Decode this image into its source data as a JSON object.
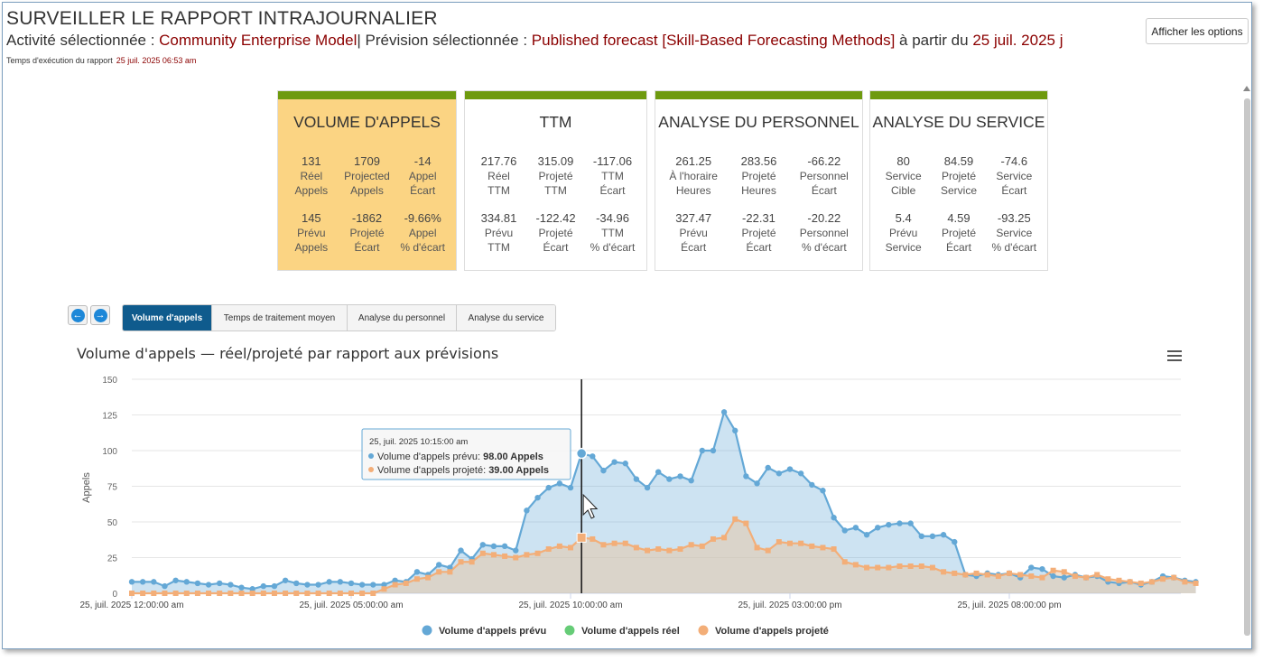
{
  "header": {
    "title": "SURVEILLER LE RAPPORT INTRAJOURNALIER",
    "activity_label": "Activité sélectionnée : ",
    "activity_value": "Community Enterprise Model",
    "forecast_label": "| Prévision sélectionnée : ",
    "forecast_value": "Published forecast [Skill-Based Forecasting Methods]",
    "from_label": " à partir du ",
    "from_value": "25 juil. 2025 j",
    "exec_label": "Temps d'exécution du rapport",
    "exec_value": "25 juil. 2025 06:53 am",
    "options_button": "Afficher les options"
  },
  "cards": [
    {
      "title": "VOLUME D'APPELS",
      "active": true,
      "metrics": [
        {
          "value": "131",
          "l1": "Réel",
          "l2": "Appels"
        },
        {
          "value": "1709",
          "l1": "Projected",
          "l2": "Appels"
        },
        {
          "value": "-14",
          "l1": "Appel",
          "l2": "Écart"
        },
        {
          "value": "145",
          "l1": "Prévu",
          "l2": "Appels"
        },
        {
          "value": "-1862",
          "l1": "Projeté",
          "l2": "Écart"
        },
        {
          "value": "-9.66%",
          "l1": "Appel",
          "l2": "% d'écart"
        }
      ]
    },
    {
      "title": "TTM",
      "active": false,
      "metrics": [
        {
          "value": "217.76",
          "l1": "Réel",
          "l2": "TTM"
        },
        {
          "value": "315.09",
          "l1": "Projeté",
          "l2": "TTM"
        },
        {
          "value": "-117.06",
          "l1": "TTM",
          "l2": "Écart"
        },
        {
          "value": "334.81",
          "l1": "Prévu",
          "l2": "TTM"
        },
        {
          "value": "-122.42",
          "l1": "Projeté",
          "l2": "Écart"
        },
        {
          "value": "-34.96",
          "l1": "TTM",
          "l2": "% d'écart"
        }
      ]
    },
    {
      "title": "ANALYSE DU PERSONNEL",
      "active": false,
      "metrics": [
        {
          "value": "261.25",
          "l1": "À l'horaire",
          "l2": "Heures"
        },
        {
          "value": "283.56",
          "l1": "Projeté",
          "l2": "Heures"
        },
        {
          "value": "-66.22",
          "l1": "Personnel",
          "l2": "Écart"
        },
        {
          "value": "327.47",
          "l1": "Prévu",
          "l2": "Écart"
        },
        {
          "value": "-22.31",
          "l1": "Projeté",
          "l2": "Écart"
        },
        {
          "value": "-20.22",
          "l1": "Personnel",
          "l2": "% d'écart"
        }
      ]
    },
    {
      "title": "ANALYSE DU SERVICE",
      "active": false,
      "metrics": [
        {
          "value": "80",
          "l1": "Service",
          "l2": "Cible"
        },
        {
          "value": "84.59",
          "l1": "Projeté",
          "l2": "Service"
        },
        {
          "value": "-74.6",
          "l1": "Service",
          "l2": "Écart"
        },
        {
          "value": "5.4",
          "l1": "Prévu",
          "l2": "Service"
        },
        {
          "value": "4.59",
          "l1": "Projeté",
          "l2": "Écart"
        },
        {
          "value": "-93.25",
          "l1": "Service",
          "l2": "% d'écart"
        }
      ]
    }
  ],
  "tabs": [
    "Volume d'appels",
    "Temps de traitement moyen",
    "Analyse du personnel",
    "Analyse du service"
  ],
  "chart_title": "Volume d'appels — réel/projeté par rapport aux prévisions",
  "tooltip": {
    "time": "25, juil. 2025 10:15:00 am",
    "row1_label": "Volume d'appels prévu: ",
    "row1_value": "98.00 Appels",
    "row2_label": "Volume d'appels projeté: ",
    "row2_value": "39.00 Appels"
  },
  "colors": {
    "forecast": "#64a8d6",
    "actual": "#66cc77",
    "projected": "#f3ae78",
    "card_bar": "#6e9a0f",
    "card_active": "#fbd483",
    "tab_selected": "#0f5b8d"
  },
  "chart_data": {
    "type": "area",
    "ylabel": "Appels",
    "ylim": [
      0,
      150
    ],
    "yticks": [
      0,
      25,
      50,
      75,
      100,
      125,
      150
    ],
    "xtick_labels": [
      "25, juil. 2025 12:00:00 am",
      "25, juil. 2025 05:00:00 am",
      "25, juil. 2025 10:00:00 am",
      "25, juil. 2025 03:00:00 pm",
      "25, juil. 2025 08:00:00 pm"
    ],
    "x_start": "25, juil. 2025 12:00:00 am",
    "interval_minutes": 15,
    "hover_index": 41,
    "legend": [
      "Volume d'appels prévu",
      "Volume d'appels réel",
      "Volume d'appels projeté"
    ],
    "series": [
      {
        "name": "Volume d'appels prévu",
        "values": [
          8,
          8,
          8,
          5,
          9,
          8,
          7,
          6,
          7,
          6,
          4,
          3,
          5,
          5,
          9,
          7,
          6,
          6,
          8,
          8,
          7,
          6,
          6,
          6,
          9,
          8,
          15,
          13,
          20,
          18,
          30,
          24,
          34,
          33,
          33,
          30,
          58,
          67,
          74,
          77,
          74,
          98,
          96,
          86,
          92,
          91,
          80,
          74,
          85,
          80,
          82,
          79,
          100,
          100,
          127,
          114,
          82,
          77,
          88,
          84,
          87,
          84,
          76,
          72,
          53,
          44,
          46,
          41,
          46,
          48,
          49,
          49,
          40,
          40,
          41,
          36,
          13,
          12,
          14,
          13,
          14,
          11,
          18,
          17,
          12,
          11,
          13,
          11,
          12,
          8,
          7,
          8,
          6,
          8,
          12,
          11,
          9,
          8
        ]
      },
      {
        "name": "Volume d'appels projeté",
        "values": [
          0,
          0,
          0,
          0,
          0,
          0,
          0,
          0,
          0,
          0,
          0,
          0,
          0,
          0,
          0,
          0,
          0,
          0,
          0,
          0,
          0,
          0,
          0,
          3,
          6,
          7,
          10,
          11,
          15,
          15,
          22,
          22,
          28,
          27,
          26,
          25,
          27,
          28,
          31,
          33,
          32,
          39,
          38,
          34,
          35,
          35,
          32,
          30,
          31,
          30,
          31,
          34,
          33,
          38,
          39,
          52,
          49,
          32,
          30,
          36,
          35,
          35,
          33,
          32,
          31,
          22,
          20,
          18,
          18,
          18,
          19,
          19,
          19,
          18,
          15,
          14,
          13,
          14,
          13,
          12,
          14,
          13,
          12,
          11,
          16,
          15,
          12,
          11,
          13,
          10,
          9,
          8,
          7,
          8,
          10,
          11,
          8,
          7
        ]
      },
      {
        "name": "Volume d'appels réel",
        "values": []
      }
    ]
  }
}
